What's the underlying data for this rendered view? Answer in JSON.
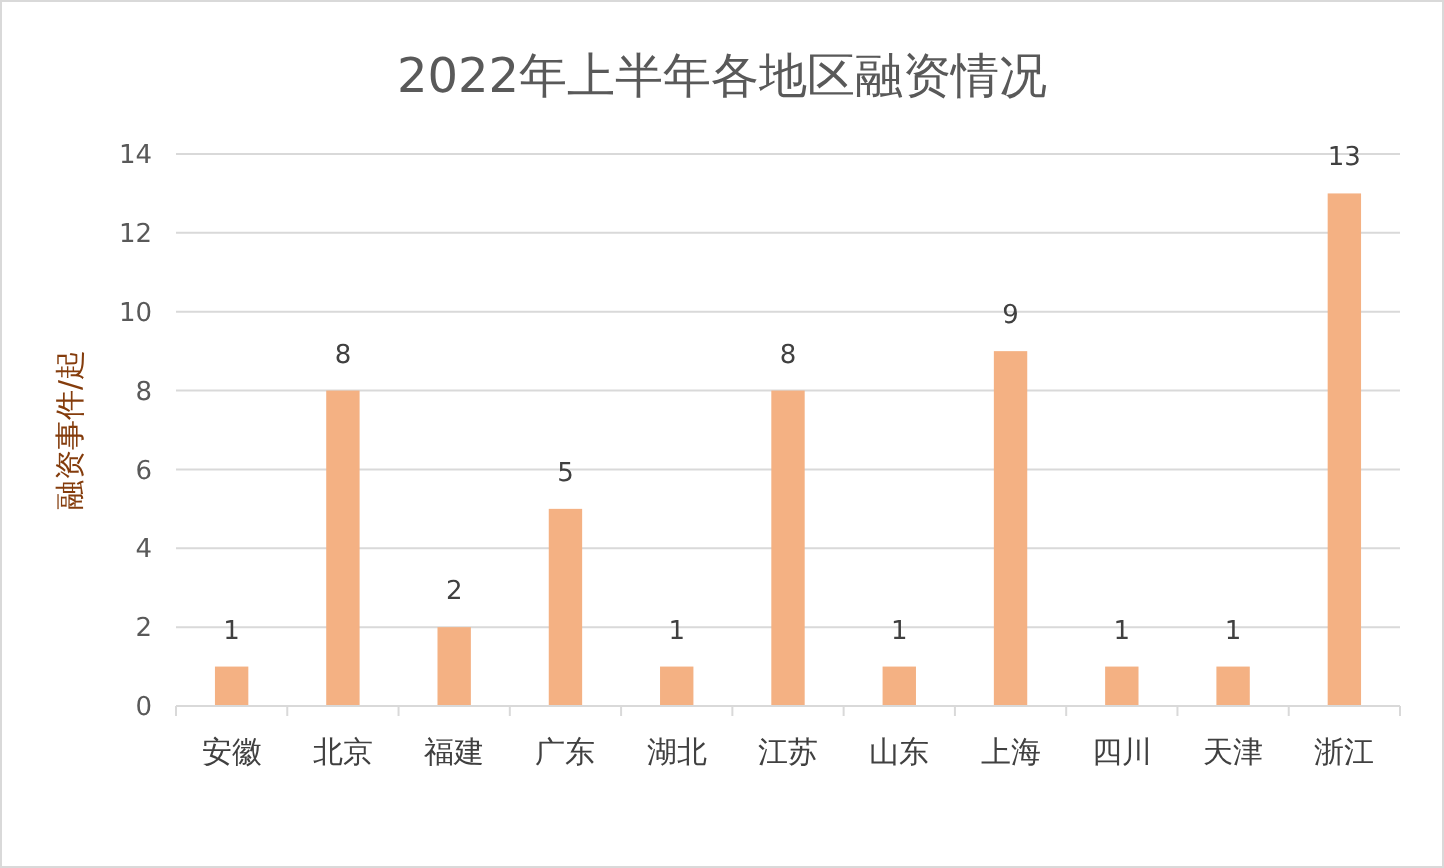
{
  "chart_data": {
    "type": "bar",
    "title": "2022年上半年各地区融资情况",
    "ylabel": "融资事件/起",
    "categories": [
      "安徽",
      "北京",
      "福建",
      "广东",
      "湖北",
      "江苏",
      "山东",
      "上海",
      "四川",
      "天津",
      "浙江"
    ],
    "values": [
      1,
      8,
      2,
      5,
      1,
      8,
      1,
      9,
      1,
      1,
      13
    ],
    "color": "#f4b183",
    "ylim": [
      0,
      14
    ],
    "yticks": [
      0,
      2,
      4,
      6,
      8,
      10,
      12,
      14
    ],
    "grid": "y",
    "data_labels": true
  }
}
